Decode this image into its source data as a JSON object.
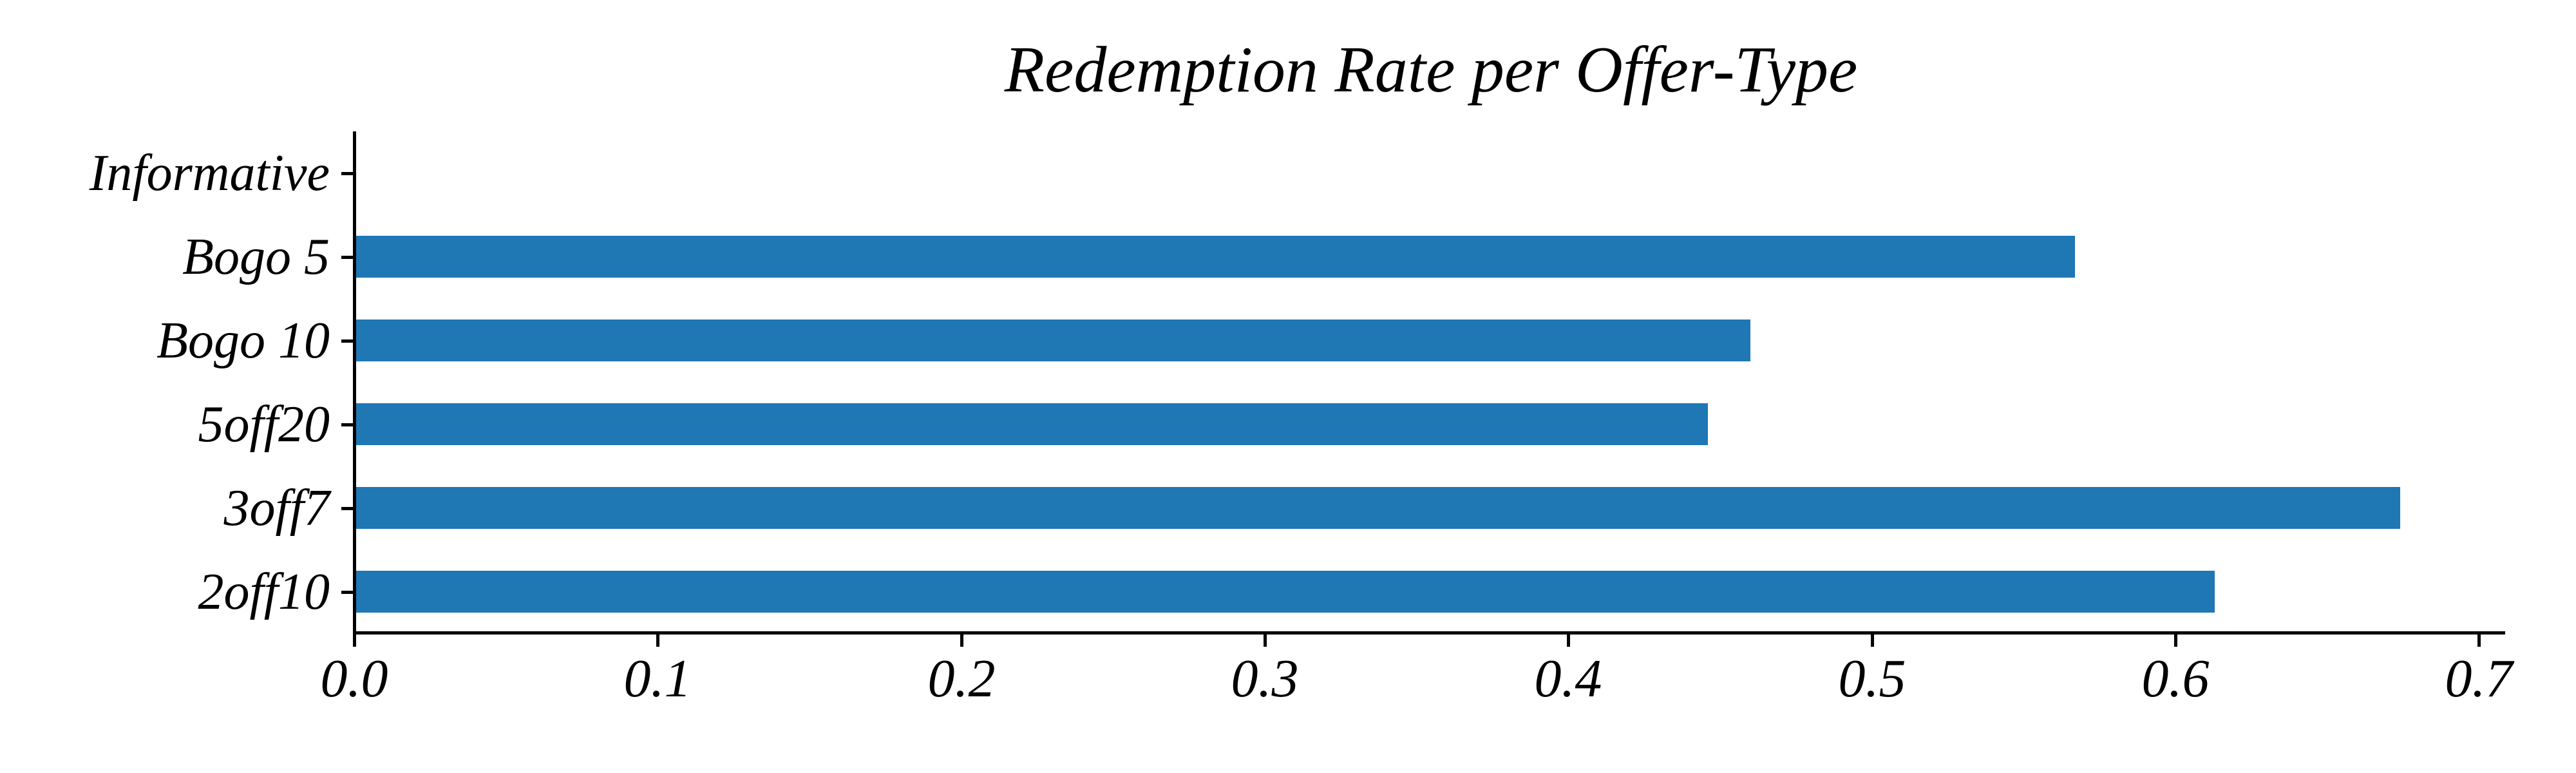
{
  "figure": {
    "background_color": "#ffffff",
    "text_color": "#000000"
  },
  "chart_data": {
    "type": "bar",
    "orientation": "horizontal",
    "title": "Redemption Rate per Offer-Type",
    "categories": [
      "Informative",
      "Bogo 5",
      "Bogo 10",
      "5off20",
      "3off7",
      "2off10"
    ],
    "values": [
      0.0,
      0.567,
      0.46,
      0.446,
      0.674,
      0.613
    ],
    "xlabel": "",
    "ylabel": "",
    "xlim": [
      0.0,
      0.709
    ],
    "x_ticks": [
      0.0,
      0.1,
      0.2,
      0.3,
      0.4,
      0.5,
      0.6,
      0.7
    ],
    "x_tick_labels": [
      "0.0",
      "0.1",
      "0.2",
      "0.3",
      "0.4",
      "0.5",
      "0.6",
      "0.7"
    ],
    "grid": false,
    "legend": null,
    "bar_color": "#1f77b4",
    "axis_color": "#000000"
  }
}
